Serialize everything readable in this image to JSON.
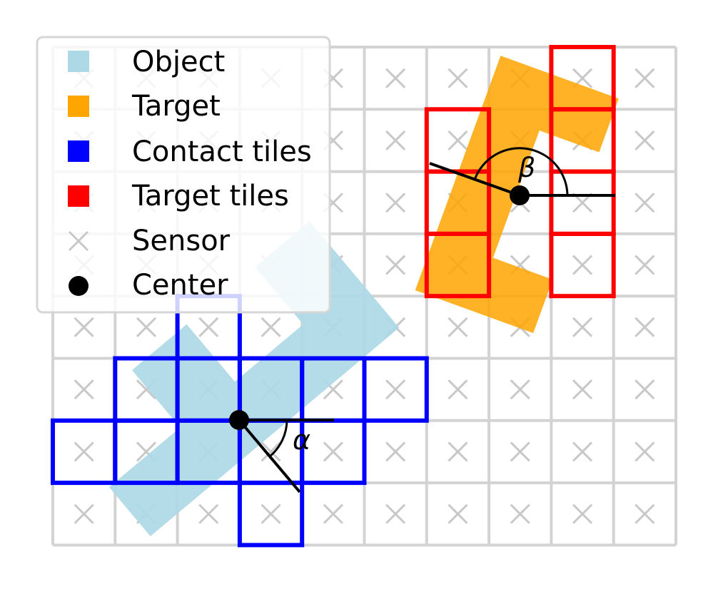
{
  "grid": {
    "cols": 10,
    "rows": 8,
    "colors": {
      "grid_line": "#d3d3d3",
      "sensor_mark": "#c8c8c8",
      "object": "#add8e6",
      "target": "#ffa500",
      "contact_tile": "#0000ff",
      "target_tile": "#ff0000",
      "center": "#000000"
    }
  },
  "contact_tiles": [
    [
      2,
      4
    ],
    [
      1,
      5
    ],
    [
      2,
      5
    ],
    [
      3,
      5
    ],
    [
      4,
      5
    ],
    [
      5,
      5
    ],
    [
      0,
      6
    ],
    [
      1,
      6
    ],
    [
      2,
      6
    ],
    [
      3,
      6
    ],
    [
      4,
      6
    ],
    [
      3,
      7
    ]
  ],
  "target_tiles": [
    [
      8,
      0
    ],
    [
      6,
      1
    ],
    [
      8,
      1
    ],
    [
      6,
      2
    ],
    [
      8,
      2
    ],
    [
      6,
      3
    ],
    [
      8,
      3
    ]
  ],
  "angles": {
    "alpha_symbol": "α",
    "beta_symbol": "β"
  },
  "legend": {
    "items": [
      {
        "label": "Object",
        "marker": "square",
        "color": "#add8e6"
      },
      {
        "label": "Target",
        "marker": "square",
        "color": "#ffa500"
      },
      {
        "label": "Contact tiles",
        "marker": "square",
        "color": "#0000ff"
      },
      {
        "label": "Target tiles",
        "marker": "square",
        "color": "#ff0000"
      },
      {
        "label": "Sensor",
        "marker": "x-icon",
        "color": "#c8c8c8"
      },
      {
        "label": "Center",
        "marker": "dot",
        "color": "#000000"
      }
    ]
  }
}
